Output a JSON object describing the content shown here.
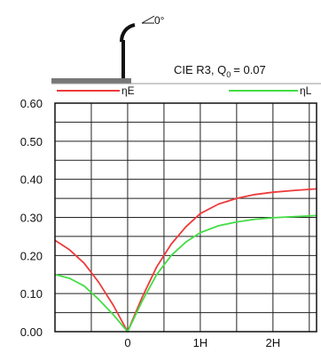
{
  "header": {
    "angle_label": "0°",
    "road_label_prefix": "CIE R3, Q",
    "road_label_sub": "0",
    "road_label_value": "= 0.07"
  },
  "chart_data": {
    "type": "line",
    "x_tick_labels": [
      "0",
      "1H",
      "2H"
    ],
    "x_ticks": [
      0,
      1,
      2
    ],
    "xlim": [
      -1.0,
      2.6
    ],
    "ylim": [
      0,
      0.6
    ],
    "y_ticks": [
      0.0,
      0.1,
      0.2,
      0.3,
      0.4,
      0.5,
      0.6
    ],
    "y_tick_labels": [
      "0.00",
      "0.10",
      "0.20",
      "0.30",
      "0.40",
      "0.50",
      "0.60"
    ],
    "grid": true,
    "legend_position": "top",
    "series": [
      {
        "name": "ηE",
        "color": "#ee3b3b",
        "points": [
          [
            -1.0,
            0.24
          ],
          [
            -0.8,
            0.215
          ],
          [
            -0.6,
            0.18
          ],
          [
            -0.4,
            0.13
          ],
          [
            -0.2,
            0.07
          ],
          [
            0.0,
            0.0
          ],
          [
            0.2,
            0.09
          ],
          [
            0.4,
            0.17
          ],
          [
            0.6,
            0.23
          ],
          [
            0.8,
            0.275
          ],
          [
            1.0,
            0.31
          ],
          [
            1.25,
            0.335
          ],
          [
            1.5,
            0.35
          ],
          [
            1.75,
            0.36
          ],
          [
            2.0,
            0.366
          ],
          [
            2.3,
            0.371
          ],
          [
            2.6,
            0.375
          ]
        ]
      },
      {
        "name": "ηL",
        "color": "#44dd44",
        "points": [
          [
            -1.0,
            0.15
          ],
          [
            -0.8,
            0.14
          ],
          [
            -0.6,
            0.12
          ],
          [
            -0.4,
            0.085
          ],
          [
            -0.2,
            0.045
          ],
          [
            0.0,
            0.0
          ],
          [
            0.2,
            0.08
          ],
          [
            0.4,
            0.15
          ],
          [
            0.6,
            0.2
          ],
          [
            0.8,
            0.235
          ],
          [
            1.0,
            0.26
          ],
          [
            1.25,
            0.278
          ],
          [
            1.5,
            0.288
          ],
          [
            1.75,
            0.295
          ],
          [
            2.0,
            0.299
          ],
          [
            2.3,
            0.302
          ],
          [
            2.6,
            0.305
          ]
        ]
      }
    ]
  }
}
